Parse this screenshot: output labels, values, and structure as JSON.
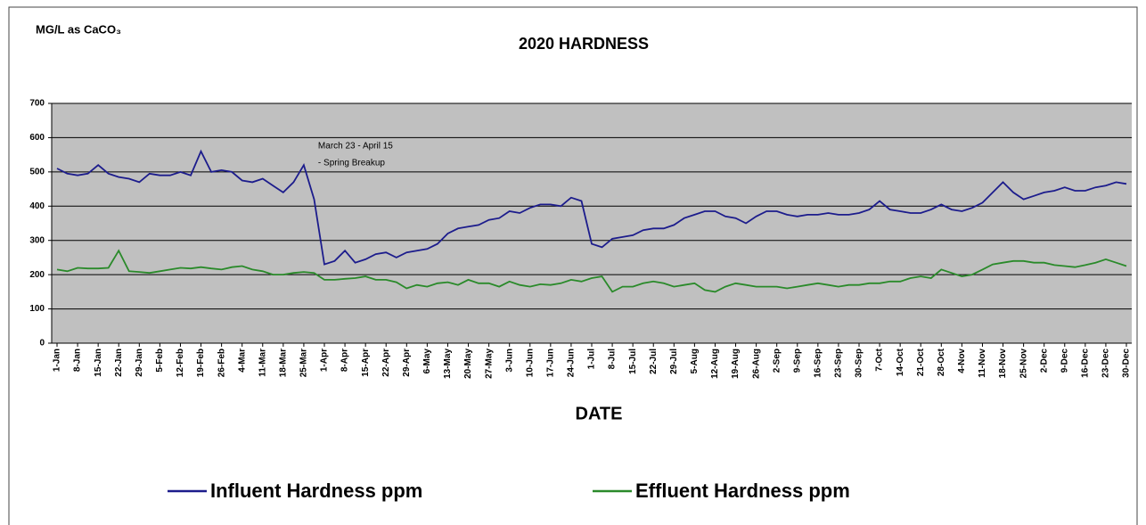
{
  "chart_data": {
    "type": "line",
    "title": "2020 HARDNESS",
    "y_label": "MG/L as CaCO₃",
    "x_label": "DATE",
    "annotation": [
      "March 23 - April 15",
      "- Spring Breakup"
    ],
    "categories": [
      "1-Jan",
      null,
      "8-Jan",
      null,
      "15-Jan",
      null,
      "22-Jan",
      null,
      "29-Jan",
      null,
      "5-Feb",
      null,
      "12-Feb",
      null,
      "19-Feb",
      null,
      "26-Feb",
      null,
      "4-Mar",
      null,
      "11-Mar",
      null,
      "18-Mar",
      null,
      "25-Mar",
      null,
      "1-Apr",
      null,
      "8-Apr",
      null,
      "15-Apr",
      null,
      "22-Apr",
      null,
      "29-Apr",
      null,
      "6-May",
      null,
      "13-May",
      null,
      "20-May",
      null,
      "27-May",
      null,
      "3-Jun",
      null,
      "10-Jun",
      null,
      "17-Jun",
      null,
      "24-Jun",
      null,
      "1-Jul",
      null,
      "8-Jul",
      null,
      "15-Jul",
      null,
      "22-Jul",
      null,
      "29-Jul",
      null,
      "5-Aug",
      null,
      "12-Aug",
      null,
      "19-Aug",
      null,
      "26-Aug",
      null,
      "2-Sep",
      null,
      "9-Sep",
      null,
      "16-Sep",
      null,
      "23-Sep",
      null,
      "30-Sep",
      null,
      "7-Oct",
      null,
      "14-Oct",
      null,
      "21-Oct",
      null,
      "28-Oct",
      null,
      "4-Nov",
      null,
      "11-Nov",
      null,
      "18-Nov",
      null,
      "25-Nov",
      null,
      "2-Dec",
      null,
      "9-Dec",
      null,
      "16-Dec",
      null,
      "23-Dec",
      null,
      "30-Dec"
    ],
    "series": [
      {
        "name": "Influent Hardness ppm",
        "color": "#1c1c8c",
        "values": [
          510,
          495,
          490,
          495,
          520,
          495,
          485,
          480,
          470,
          495,
          490,
          490,
          500,
          490,
          560,
          500,
          505,
          500,
          475,
          470,
          480,
          460,
          440,
          470,
          520,
          420,
          230,
          240,
          270,
          235,
          245,
          260,
          265,
          250,
          265,
          270,
          275,
          290,
          320,
          335,
          340,
          345,
          360,
          365,
          385,
          380,
          395,
          405,
          405,
          400,
          425,
          415,
          290,
          280,
          305,
          310,
          315,
          330,
          335,
          335,
          345,
          365,
          375,
          385,
          385,
          370,
          365,
          350,
          370,
          385,
          385,
          375,
          370,
          375,
          375,
          380,
          375,
          375,
          380,
          390,
          415,
          390,
          385,
          380,
          380,
          390,
          405,
          390,
          385,
          395,
          410,
          440,
          470,
          440,
          420,
          430,
          440,
          445,
          455,
          445,
          445,
          455,
          460,
          470,
          465
        ]
      },
      {
        "name": "Effluent Hardness ppm",
        "color": "#2a8a2a",
        "values": [
          215,
          210,
          220,
          218,
          218,
          220,
          270,
          210,
          208,
          205,
          210,
          215,
          220,
          218,
          222,
          218,
          215,
          222,
          225,
          215,
          210,
          200,
          200,
          205,
          208,
          205,
          185,
          185,
          188,
          190,
          195,
          185,
          185,
          178,
          160,
          170,
          165,
          175,
          178,
          170,
          185,
          175,
          175,
          165,
          180,
          170,
          165,
          172,
          170,
          175,
          185,
          180,
          190,
          195,
          150,
          165,
          165,
          175,
          180,
          175,
          165,
          170,
          175,
          155,
          150,
          165,
          175,
          170,
          165,
          165,
          165,
          160,
          165,
          170,
          175,
          170,
          165,
          170,
          170,
          175,
          175,
          180,
          180,
          190,
          195,
          190,
          215,
          205,
          195,
          200,
          215,
          230,
          235,
          240,
          240,
          235,
          235,
          228,
          225,
          222,
          228,
          235,
          245,
          235,
          225
        ]
      }
    ],
    "ylim": [
      0,
      700
    ],
    "yticks": [
      0,
      100,
      200,
      300,
      400,
      500,
      600,
      700
    ],
    "grid": true,
    "plot_background": "#c0c0c0"
  }
}
